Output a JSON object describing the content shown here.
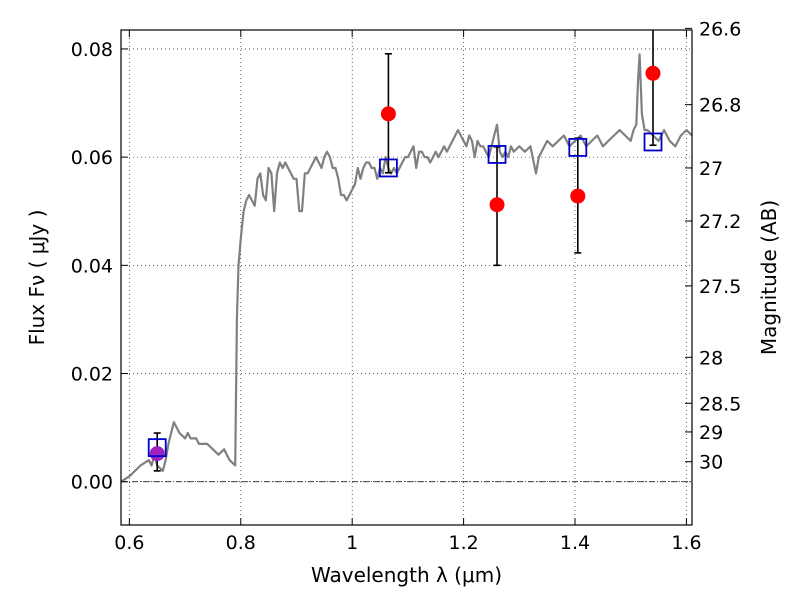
{
  "chart_data": {
    "type": "scatter",
    "xlabel": "Wavelength  λ (μm)",
    "ylabel": "Flux  Fν  ( μJy )",
    "ylabel2": "Magnitude (AB)",
    "xlim": [
      0.585,
      1.61
    ],
    "ylim": [
      -0.008,
      0.0835
    ],
    "x_ticks": [
      0.6,
      0.8,
      1.0,
      1.2,
      1.4,
      1.6
    ],
    "x_tick_labels": [
      "0.6",
      "0.8",
      "1",
      "1.2",
      "1.4",
      "1.6"
    ],
    "y_ticks": [
      0.0,
      0.02,
      0.04,
      0.06,
      0.08
    ],
    "y_tick_labels": [
      "0.00",
      "0.02",
      "0.04",
      "0.06",
      "0.08"
    ],
    "right_ticks": [
      {
        "label": "26.6",
        "flux": 0.0838
      },
      {
        "label": "26.8",
        "flux": 0.0697
      },
      {
        "label": "27",
        "flux": 0.058
      },
      {
        "label": "27.2",
        "flux": 0.0482
      },
      {
        "label": "27.5",
        "flux": 0.0362
      },
      {
        "label": "28",
        "flux": 0.023
      },
      {
        "label": "28.5",
        "flux": 0.0145
      },
      {
        "label": "29",
        "flux": 0.0092
      },
      {
        "label": "30",
        "flux": 0.0037
      }
    ],
    "grid": true,
    "zero_line": true,
    "series": [
      {
        "kind": "model-spectrum",
        "color": "#808080",
        "x": [
          0.585,
          0.6,
          0.62,
          0.635,
          0.64,
          0.645,
          0.65,
          0.66,
          0.665,
          0.67,
          0.675,
          0.68,
          0.685,
          0.69,
          0.7,
          0.705,
          0.71,
          0.72,
          0.725,
          0.73,
          0.74,
          0.75,
          0.76,
          0.77,
          0.775,
          0.78,
          0.79,
          0.793,
          0.796,
          0.8,
          0.805,
          0.81,
          0.815,
          0.82,
          0.825,
          0.83,
          0.835,
          0.84,
          0.845,
          0.85,
          0.855,
          0.86,
          0.865,
          0.87,
          0.875,
          0.88,
          0.885,
          0.89,
          0.895,
          0.9,
          0.905,
          0.91,
          0.915,
          0.92,
          0.925,
          0.93,
          0.935,
          0.94,
          0.945,
          0.95,
          0.955,
          0.96,
          0.965,
          0.97,
          0.975,
          0.98,
          0.985,
          0.99,
          0.995,
          1.0,
          1.005,
          1.01,
          1.015,
          1.02,
          1.025,
          1.03,
          1.035,
          1.04,
          1.045,
          1.05,
          1.055,
          1.06,
          1.065,
          1.07,
          1.075,
          1.08,
          1.085,
          1.09,
          1.095,
          1.1,
          1.105,
          1.11,
          1.115,
          1.12,
          1.125,
          1.13,
          1.135,
          1.14,
          1.145,
          1.15,
          1.155,
          1.16,
          1.165,
          1.17,
          1.175,
          1.18,
          1.185,
          1.19,
          1.195,
          1.2,
          1.205,
          1.21,
          1.215,
          1.22,
          1.225,
          1.23,
          1.235,
          1.24,
          1.245,
          1.25,
          1.255,
          1.26,
          1.265,
          1.27,
          1.275,
          1.28,
          1.285,
          1.29,
          1.3,
          1.31,
          1.32,
          1.33,
          1.335,
          1.34,
          1.345,
          1.35,
          1.36,
          1.37,
          1.38,
          1.39,
          1.4,
          1.41,
          1.42,
          1.43,
          1.44,
          1.45,
          1.46,
          1.47,
          1.48,
          1.49,
          1.5,
          1.505,
          1.51,
          1.513,
          1.516,
          1.52,
          1.525,
          1.53,
          1.54,
          1.55,
          1.56,
          1.57,
          1.58,
          1.59,
          1.6,
          1.61
        ],
        "y": [
          0.0,
          0.001,
          0.003,
          0.004,
          0.003,
          0.005,
          0.003,
          0.002,
          0.004,
          0.007,
          0.009,
          0.011,
          0.01,
          0.009,
          0.008,
          0.009,
          0.008,
          0.008,
          0.007,
          0.007,
          0.007,
          0.006,
          0.005,
          0.006,
          0.005,
          0.004,
          0.003,
          0.03,
          0.04,
          0.045,
          0.05,
          0.052,
          0.053,
          0.052,
          0.051,
          0.056,
          0.057,
          0.053,
          0.052,
          0.058,
          0.057,
          0.05,
          0.057,
          0.059,
          0.058,
          0.059,
          0.058,
          0.057,
          0.056,
          0.056,
          0.05,
          0.05,
          0.057,
          0.057,
          0.058,
          0.059,
          0.06,
          0.059,
          0.058,
          0.06,
          0.061,
          0.06,
          0.058,
          0.058,
          0.056,
          0.053,
          0.053,
          0.052,
          0.053,
          0.054,
          0.055,
          0.058,
          0.056,
          0.058,
          0.059,
          0.059,
          0.058,
          0.058,
          0.056,
          0.058,
          0.057,
          0.06,
          0.058,
          0.057,
          0.058,
          0.057,
          0.058,
          0.059,
          0.06,
          0.06,
          0.061,
          0.062,
          0.058,
          0.061,
          0.061,
          0.06,
          0.06,
          0.059,
          0.06,
          0.061,
          0.06,
          0.061,
          0.062,
          0.061,
          0.062,
          0.063,
          0.064,
          0.065,
          0.064,
          0.063,
          0.062,
          0.064,
          0.063,
          0.06,
          0.063,
          0.062,
          0.062,
          0.061,
          0.06,
          0.062,
          0.064,
          0.066,
          0.061,
          0.06,
          0.061,
          0.06,
          0.062,
          0.061,
          0.062,
          0.061,
          0.062,
          0.057,
          0.06,
          0.061,
          0.062,
          0.063,
          0.062,
          0.063,
          0.064,
          0.062,
          0.063,
          0.064,
          0.062,
          0.063,
          0.064,
          0.062,
          0.063,
          0.064,
          0.065,
          0.064,
          0.063,
          0.065,
          0.066,
          0.074,
          0.079,
          0.068,
          0.065,
          0.065,
          0.064,
          0.063,
          0.065,
          0.063,
          0.062,
          0.064,
          0.065,
          0.064
        ]
      },
      {
        "kind": "model-photometry",
        "marker": "open-square",
        "color": "#0000cc",
        "x": [
          0.65,
          1.065,
          1.26,
          1.405,
          1.54
        ],
        "y": [
          0.0063,
          0.058,
          0.0605,
          0.0618,
          0.0628
        ]
      },
      {
        "kind": "observed",
        "marker": "filled-circle",
        "colors": [
          "#a020c0",
          "#ff0000",
          "#ff0000",
          "#ff0000",
          "#ff0000"
        ],
        "x": [
          0.65,
          1.065,
          1.26,
          1.405,
          1.54
        ],
        "y": [
          0.0052,
          0.068,
          0.0512,
          0.0528,
          0.0755
        ],
        "yerr_low": [
          0.0032,
          0.0109,
          0.0112,
          0.0105,
          0.0133
        ],
        "yerr_high": [
          0.0038,
          0.0111,
          0.0107,
          0.0107,
          0.008
        ],
        "ecolor": "#000000"
      }
    ]
  }
}
